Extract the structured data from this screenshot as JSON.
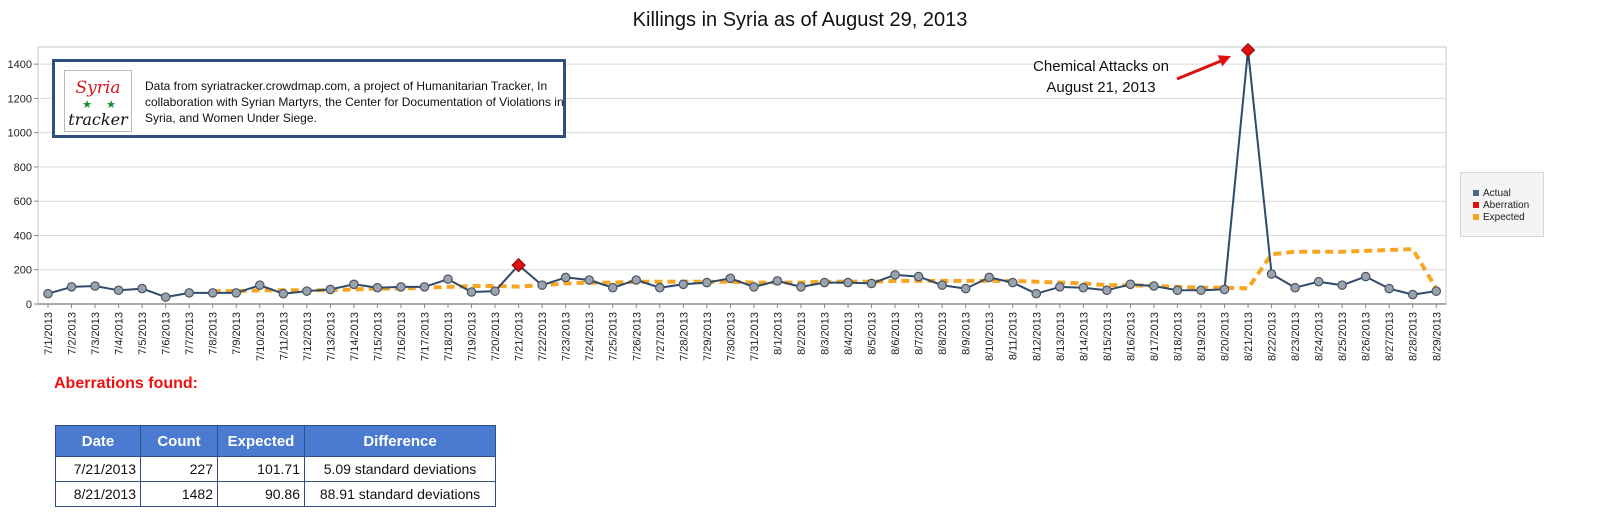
{
  "chart_data": {
    "type": "line",
    "title": "Killings in Syria as of August 29, 2013",
    "xlabel": "",
    "ylabel": "",
    "ylim": [
      0,
      1500
    ],
    "yticks": [
      0,
      200,
      400,
      600,
      800,
      1000,
      1200,
      1400
    ],
    "grid": true,
    "legend_position": "right",
    "categories": [
      "7/1/2013",
      "7/2/2013",
      "7/3/2013",
      "7/4/2013",
      "7/5/2013",
      "7/6/2013",
      "7/7/2013",
      "7/8/2013",
      "7/9/2013",
      "7/10/2013",
      "7/11/2013",
      "7/12/2013",
      "7/13/2013",
      "7/14/2013",
      "7/15/2013",
      "7/16/2013",
      "7/17/2013",
      "7/18/2013",
      "7/19/2013",
      "7/20/2013",
      "7/21/2013",
      "7/22/2013",
      "7/23/2013",
      "7/24/2013",
      "7/25/2013",
      "7/26/2013",
      "7/27/2013",
      "7/28/2013",
      "7/29/2013",
      "7/30/2013",
      "7/31/2013",
      "8/1/2013",
      "8/2/2013",
      "8/3/2013",
      "8/4/2013",
      "8/5/2013",
      "8/6/2013",
      "8/7/2013",
      "8/8/2013",
      "8/9/2013",
      "8/10/2013",
      "8/11/2013",
      "8/12/2013",
      "8/13/2013",
      "8/14/2013",
      "8/15/2013",
      "8/16/2013",
      "8/17/2013",
      "8/18/2013",
      "8/19/2013",
      "8/20/2013",
      "8/21/2013",
      "8/22/2013",
      "8/23/2013",
      "8/24/2013",
      "8/25/2013",
      "8/26/2013",
      "8/27/2013",
      "8/28/2013",
      "8/29/2013"
    ],
    "series": [
      {
        "name": "Actual",
        "color": "#2f4a6b",
        "values": [
          60,
          100,
          105,
          80,
          90,
          40,
          65,
          65,
          65,
          110,
          60,
          75,
          85,
          115,
          95,
          100,
          100,
          145,
          70,
          75,
          227,
          110,
          155,
          140,
          95,
          140,
          95,
          115,
          125,
          150,
          100,
          135,
          100,
          125,
          125,
          120,
          170,
          160,
          110,
          90,
          155,
          125,
          60,
          100,
          95,
          80,
          115,
          105,
          80,
          80,
          85,
          1482,
          175,
          95,
          130,
          110,
          160,
          90,
          55,
          75
        ]
      },
      {
        "name": "Aberration",
        "color": "#e01010",
        "points": [
          {
            "x": "7/21/2013",
            "y": 227
          },
          {
            "x": "8/21/2013",
            "y": 1482
          }
        ]
      },
      {
        "name": "Expected",
        "color": "#f5a623",
        "values": [
          null,
          null,
          null,
          null,
          null,
          null,
          null,
          75,
          75,
          80,
          80,
          80,
          80,
          85,
          90,
          90,
          95,
          100,
          105,
          105,
          101.71,
          110,
          120,
          125,
          125,
          130,
          130,
          130,
          130,
          130,
          125,
          125,
          125,
          130,
          130,
          130,
          135,
          135,
          135,
          135,
          135,
          135,
          130,
          125,
          120,
          110,
          110,
          105,
          100,
          95,
          95,
          90.86,
          290,
          305,
          305,
          305,
          310,
          315,
          320,
          90
        ]
      }
    ],
    "annotations": [
      "Chemical Attacks on August 21, 2013"
    ]
  },
  "info_box": {
    "logo_text_top": "Syria",
    "logo_text_bottom": "tracker",
    "text": "Data from syriatracker.crowdmap.com, a project of Humanitarian Tracker, In collaboration with Syrian Martyrs, the Center for Documentation of Violations in Syria, and Women Under Siege."
  },
  "annotation": {
    "line1": "Chemical Attacks on",
    "line2": "August 21, 2013",
    "arrow_color": "#e01010"
  },
  "legend": {
    "actual": "Actual",
    "aberration": "Aberration",
    "expected": "Expected"
  },
  "aberrations": {
    "heading": "Aberrations found:",
    "columns": [
      "Date",
      "Count",
      "Expected",
      "Difference"
    ],
    "rows": [
      {
        "date": "7/21/2013",
        "count": "227",
        "expected": "101.71",
        "difference": "5.09 standard deviations"
      },
      {
        "date": "8/21/2013",
        "count": "1482",
        "expected": "90.86",
        "difference": "88.91 standard deviations"
      }
    ]
  }
}
